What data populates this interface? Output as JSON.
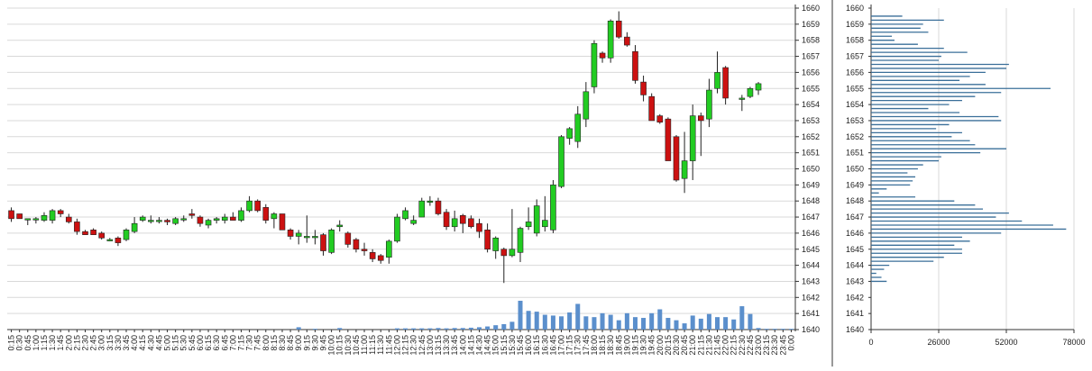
{
  "colors": {
    "up_fill": "#22cc22",
    "down_fill": "#cc1111",
    "candle_border": "#222222",
    "volume_bar": "#5b8fcc",
    "profile_bar": "#3a6f99",
    "grid": "#d9d9d9",
    "axis": "#333333",
    "background": "#ffffff"
  },
  "chart_data": [
    {
      "type": "candlestick",
      "title": "",
      "xlabel": "",
      "ylabel": "",
      "ylim": [
        1640,
        1660
      ],
      "y_ticks": [
        "1640",
        "1641",
        "1642",
        "1643",
        "1644",
        "1645",
        "1646",
        "1647",
        "1648",
        "1649",
        "1650",
        "1651",
        "1652",
        "1653",
        "1654",
        "1655",
        "1656",
        "1657",
        "1658",
        "1659",
        "1660"
      ],
      "x_ticks": [
        "0:15",
        "0:30",
        "0:45",
        "1:00",
        "1:15",
        "1:30",
        "1:45",
        "2:00",
        "2:15",
        "2:30",
        "2:45",
        "3:00",
        "3:15",
        "3:30",
        "3:45",
        "4:00",
        "4:15",
        "4:30",
        "4:45",
        "5:00",
        "5:15",
        "5:30",
        "5:45",
        "6:00",
        "6:15",
        "6:30",
        "6:45",
        "7:00",
        "7:15",
        "7:30",
        "7:45",
        "8:00",
        "8:15",
        "8:30",
        "8:45",
        "9:00",
        "9:15",
        "9:30",
        "9:45",
        "10:00",
        "10:15",
        "10:30",
        "10:45",
        "11:00",
        "11:15",
        "11:30",
        "11:45",
        "12:00",
        "12:15",
        "12:30",
        "12:45",
        "13:00",
        "13:15",
        "13:30",
        "13:45",
        "14:00",
        "14:15",
        "14:30",
        "14:45",
        "15:00",
        "15:15",
        "15:30",
        "15:45",
        "16:00",
        "16:15",
        "16:30",
        "16:45",
        "17:00",
        "17:15",
        "17:30",
        "17:45",
        "18:00",
        "18:15",
        "18:30",
        "18:45",
        "19:00",
        "19:15",
        "19:30",
        "19:45",
        "20:00",
        "20:15",
        "20:30",
        "20:45",
        "21:00",
        "21:15",
        "21:30",
        "21:45",
        "22:00",
        "22:15",
        "22:30",
        "22:45",
        "23:00",
        "23:15",
        "23:30",
        "23:45",
        "0:00"
      ],
      "candles": [
        {
          "t": "0:15",
          "o": 1647.4,
          "h": 1647.6,
          "l": 1646.7,
          "c": 1646.9
        },
        {
          "t": "0:30",
          "o": 1647.2,
          "h": 1647.2,
          "l": 1646.9,
          "c": 1646.9
        },
        {
          "t": "0:45",
          "o": 1646.9,
          "h": 1646.9,
          "l": 1646.5,
          "c": 1646.9
        },
        {
          "t": "1:00",
          "o": 1646.9,
          "h": 1647.0,
          "l": 1646.6,
          "c": 1646.9
        },
        {
          "t": "1:15",
          "o": 1646.8,
          "h": 1647.3,
          "l": 1646.7,
          "c": 1647.1
        },
        {
          "t": "1:30",
          "o": 1646.8,
          "h": 1647.5,
          "l": 1646.6,
          "c": 1647.4
        },
        {
          "t": "1:45",
          "o": 1647.4,
          "h": 1647.5,
          "l": 1647.0,
          "c": 1647.2
        },
        {
          "t": "2:00",
          "o": 1647.0,
          "h": 1647.2,
          "l": 1646.6,
          "c": 1646.7
        },
        {
          "t": "2:15",
          "o": 1646.7,
          "h": 1646.9,
          "l": 1645.9,
          "c": 1646.1
        },
        {
          "t": "2:30",
          "o": 1646.1,
          "h": 1646.2,
          "l": 1645.9,
          "c": 1645.9
        },
        {
          "t": "2:45",
          "o": 1646.2,
          "h": 1646.3,
          "l": 1645.9,
          "c": 1645.9
        },
        {
          "t": "3:00",
          "o": 1646.0,
          "h": 1646.1,
          "l": 1645.6,
          "c": 1645.7
        },
        {
          "t": "3:15",
          "o": 1645.6,
          "h": 1645.7,
          "l": 1645.5,
          "c": 1645.6
        },
        {
          "t": "3:30",
          "o": 1645.7,
          "h": 1645.8,
          "l": 1645.2,
          "c": 1645.4
        },
        {
          "t": "3:45",
          "o": 1645.6,
          "h": 1646.3,
          "l": 1645.5,
          "c": 1646.2
        },
        {
          "t": "4:00",
          "o": 1646.1,
          "h": 1647.0,
          "l": 1646.0,
          "c": 1646.6
        },
        {
          "t": "4:15",
          "o": 1646.8,
          "h": 1647.1,
          "l": 1646.7,
          "c": 1647.0
        },
        {
          "t": "4:30",
          "o": 1646.8,
          "h": 1647.1,
          "l": 1646.6,
          "c": 1646.8
        },
        {
          "t": "4:45",
          "o": 1646.8,
          "h": 1647.0,
          "l": 1646.6,
          "c": 1646.8
        },
        {
          "t": "5:00",
          "o": 1646.8,
          "h": 1646.9,
          "l": 1646.5,
          "c": 1646.7
        },
        {
          "t": "5:15",
          "o": 1646.6,
          "h": 1647.0,
          "l": 1646.5,
          "c": 1646.9
        },
        {
          "t": "5:30",
          "o": 1646.9,
          "h": 1647.1,
          "l": 1646.7,
          "c": 1646.9
        },
        {
          "t": "5:45",
          "o": 1647.2,
          "h": 1647.5,
          "l": 1646.9,
          "c": 1647.1
        },
        {
          "t": "6:00",
          "o": 1647.0,
          "h": 1647.1,
          "l": 1646.4,
          "c": 1646.6
        },
        {
          "t": "6:15",
          "o": 1646.5,
          "h": 1646.9,
          "l": 1646.3,
          "c": 1646.8
        },
        {
          "t": "6:30",
          "o": 1646.8,
          "h": 1647.0,
          "l": 1646.6,
          "c": 1646.9
        },
        {
          "t": "6:45",
          "o": 1646.8,
          "h": 1647.2,
          "l": 1646.6,
          "c": 1647.0
        },
        {
          "t": "7:00",
          "o": 1647.0,
          "h": 1647.3,
          "l": 1646.8,
          "c": 1646.8
        },
        {
          "t": "7:15",
          "o": 1646.8,
          "h": 1647.6,
          "l": 1646.7,
          "c": 1647.4
        },
        {
          "t": "7:30",
          "o": 1647.4,
          "h": 1648.3,
          "l": 1647.3,
          "c": 1648.0
        },
        {
          "t": "7:45",
          "o": 1648.0,
          "h": 1648.1,
          "l": 1647.3,
          "c": 1647.4
        },
        {
          "t": "8:00",
          "o": 1647.6,
          "h": 1647.8,
          "l": 1646.6,
          "c": 1646.8
        },
        {
          "t": "8:15",
          "o": 1646.9,
          "h": 1647.3,
          "l": 1646.3,
          "c": 1647.2
        },
        {
          "t": "8:30",
          "o": 1647.2,
          "h": 1647.2,
          "l": 1646.2,
          "c": 1646.2
        },
        {
          "t": "8:45",
          "o": 1646.2,
          "h": 1646.3,
          "l": 1645.6,
          "c": 1645.8
        },
        {
          "t": "9:00",
          "o": 1645.8,
          "h": 1646.2,
          "l": 1645.3,
          "c": 1646.0
        },
        {
          "t": "9:15",
          "o": 1645.8,
          "h": 1647.1,
          "l": 1645.4,
          "c": 1645.8
        },
        {
          "t": "9:30",
          "o": 1645.8,
          "h": 1646.2,
          "l": 1645.3,
          "c": 1645.8
        },
        {
          "t": "9:45",
          "o": 1645.9,
          "h": 1646.0,
          "l": 1644.6,
          "c": 1644.9
        },
        {
          "t": "10:00",
          "o": 1644.8,
          "h": 1646.3,
          "l": 1644.7,
          "c": 1646.2
        },
        {
          "t": "10:15",
          "o": 1646.4,
          "h": 1646.8,
          "l": 1646.1,
          "c": 1646.5
        },
        {
          "t": "10:30",
          "o": 1646.0,
          "h": 1646.1,
          "l": 1645.1,
          "c": 1645.3
        },
        {
          "t": "10:45",
          "o": 1645.6,
          "h": 1645.7,
          "l": 1644.8,
          "c": 1645.0
        },
        {
          "t": "11:00",
          "o": 1645.0,
          "h": 1645.4,
          "l": 1644.6,
          "c": 1644.9
        },
        {
          "t": "11:15",
          "o": 1644.8,
          "h": 1645.0,
          "l": 1644.2,
          "c": 1644.4
        },
        {
          "t": "11:30",
          "o": 1644.6,
          "h": 1644.7,
          "l": 1644.1,
          "c": 1644.3
        },
        {
          "t": "11:45",
          "o": 1644.5,
          "h": 1645.6,
          "l": 1644.1,
          "c": 1645.5
        },
        {
          "t": "12:00",
          "o": 1645.5,
          "h": 1647.2,
          "l": 1645.4,
          "c": 1647.0
        },
        {
          "t": "12:15",
          "o": 1646.9,
          "h": 1647.6,
          "l": 1646.8,
          "c": 1647.4
        },
        {
          "t": "12:30",
          "o": 1646.6,
          "h": 1647.1,
          "l": 1646.5,
          "c": 1646.8
        },
        {
          "t": "12:45",
          "o": 1647.0,
          "h": 1648.2,
          "l": 1647.0,
          "c": 1648.0
        },
        {
          "t": "13:00",
          "o": 1648.0,
          "h": 1648.3,
          "l": 1647.7,
          "c": 1648.0
        },
        {
          "t": "13:15",
          "o": 1648.0,
          "h": 1648.2,
          "l": 1647.1,
          "c": 1647.2
        },
        {
          "t": "13:30",
          "o": 1647.3,
          "h": 1647.5,
          "l": 1646.2,
          "c": 1646.4
        },
        {
          "t": "13:45",
          "o": 1646.4,
          "h": 1647.4,
          "l": 1646.1,
          "c": 1646.9
        },
        {
          "t": "14:00",
          "o": 1647.1,
          "h": 1647.2,
          "l": 1646.0,
          "c": 1646.6
        },
        {
          "t": "14:15",
          "o": 1646.9,
          "h": 1647.1,
          "l": 1646.3,
          "c": 1646.4
        },
        {
          "t": "14:30",
          "o": 1646.6,
          "h": 1646.9,
          "l": 1645.7,
          "c": 1646.1
        },
        {
          "t": "14:45",
          "o": 1646.2,
          "h": 1646.6,
          "l": 1644.8,
          "c": 1645.0
        },
        {
          "t": "15:00",
          "o": 1644.9,
          "h": 1645.8,
          "l": 1644.4,
          "c": 1645.7
        },
        {
          "t": "15:15",
          "o": 1645.0,
          "h": 1645.1,
          "l": 1642.9,
          "c": 1644.6
        },
        {
          "t": "15:30",
          "o": 1644.6,
          "h": 1647.5,
          "l": 1644.5,
          "c": 1645.0
        },
        {
          "t": "15:45",
          "o": 1644.8,
          "h": 1646.4,
          "l": 1644.2,
          "c": 1646.3
        },
        {
          "t": "16:00",
          "o": 1646.4,
          "h": 1647.6,
          "l": 1646.2,
          "c": 1646.7
        },
        {
          "t": "16:15",
          "o": 1646.0,
          "h": 1648.1,
          "l": 1645.8,
          "c": 1647.7
        },
        {
          "t": "16:30",
          "o": 1646.4,
          "h": 1648.3,
          "l": 1646.1,
          "c": 1646.8
        },
        {
          "t": "16:45",
          "o": 1646.2,
          "h": 1649.3,
          "l": 1646.0,
          "c": 1649.0
        },
        {
          "t": "17:00",
          "o": 1648.9,
          "h": 1652.1,
          "l": 1648.8,
          "c": 1652.0
        },
        {
          "t": "17:15",
          "o": 1651.9,
          "h": 1652.6,
          "l": 1651.5,
          "c": 1652.5
        },
        {
          "t": "17:30",
          "o": 1651.7,
          "h": 1653.9,
          "l": 1651.3,
          "c": 1653.4
        },
        {
          "t": "17:45",
          "o": 1653.1,
          "h": 1655.4,
          "l": 1652.6,
          "c": 1654.8
        },
        {
          "t": "18:00",
          "o": 1655.1,
          "h": 1658.0,
          "l": 1654.7,
          "c": 1657.8
        },
        {
          "t": "18:15",
          "o": 1657.2,
          "h": 1657.3,
          "l": 1656.6,
          "c": 1656.9
        },
        {
          "t": "18:30",
          "o": 1656.9,
          "h": 1659.3,
          "l": 1656.6,
          "c": 1659.2
        },
        {
          "t": "18:45",
          "o": 1659.2,
          "h": 1659.8,
          "l": 1658.1,
          "c": 1658.2
        },
        {
          "t": "19:00",
          "o": 1658.2,
          "h": 1658.5,
          "l": 1657.6,
          "c": 1657.7
        },
        {
          "t": "19:15",
          "o": 1657.3,
          "h": 1657.7,
          "l": 1655.3,
          "c": 1655.5
        },
        {
          "t": "19:30",
          "o": 1655.4,
          "h": 1655.8,
          "l": 1654.2,
          "c": 1654.6
        },
        {
          "t": "19:45",
          "o": 1654.5,
          "h": 1654.7,
          "l": 1653.1,
          "c": 1653.0
        },
        {
          "t": "20:00",
          "o": 1653.3,
          "h": 1653.4,
          "l": 1652.8,
          "c": 1652.9
        },
        {
          "t": "20:15",
          "o": 1653.1,
          "h": 1653.2,
          "l": 1650.6,
          "c": 1650.5
        },
        {
          "t": "20:30",
          "o": 1652.0,
          "h": 1652.1,
          "l": 1649.2,
          "c": 1649.3
        },
        {
          "t": "20:45",
          "o": 1649.4,
          "h": 1652.3,
          "l": 1648.5,
          "c": 1650.5
        },
        {
          "t": "21:00",
          "o": 1650.5,
          "h": 1654.0,
          "l": 1649.3,
          "c": 1653.3
        },
        {
          "t": "21:15",
          "o": 1653.3,
          "h": 1653.5,
          "l": 1650.8,
          "c": 1653.0
        },
        {
          "t": "21:30",
          "o": 1653.1,
          "h": 1655.6,
          "l": 1652.6,
          "c": 1654.9
        },
        {
          "t": "21:45",
          "o": 1655.0,
          "h": 1657.3,
          "l": 1654.7,
          "c": 1656.0
        },
        {
          "t": "22:00",
          "o": 1656.3,
          "h": 1656.4,
          "l": 1654.0,
          "c": 1654.4
        },
        {
          "t": "22:15",
          "o": null,
          "h": null,
          "l": null,
          "c": null
        },
        {
          "t": "22:30",
          "o": 1654.4,
          "h": 1654.6,
          "l": 1653.6,
          "c": 1654.4
        },
        {
          "t": "22:45",
          "o": 1654.5,
          "h": 1655.1,
          "l": 1654.4,
          "c": 1655.0
        },
        {
          "t": "23:00",
          "o": 1654.9,
          "h": 1655.4,
          "l": 1654.6,
          "c": 1655.3
        },
        {
          "t": "23:15",
          "o": null,
          "h": null,
          "l": null,
          "c": null
        },
        {
          "t": "23:30",
          "o": null,
          "h": null,
          "l": null,
          "c": null
        },
        {
          "t": "23:45",
          "o": null,
          "h": null,
          "l": null,
          "c": null
        },
        {
          "t": "0:00",
          "o": null,
          "h": null,
          "l": null,
          "c": null
        }
      ],
      "volume": [
        0,
        0,
        0,
        0,
        0,
        0,
        0,
        0,
        0,
        0,
        0,
        0,
        0,
        0,
        0,
        0,
        0,
        0,
        0,
        0,
        0,
        0,
        0,
        0,
        0,
        0,
        0,
        0,
        0,
        0,
        0,
        0,
        0,
        0,
        0,
        0.15,
        0,
        0.05,
        0,
        0,
        0.1,
        0,
        0,
        0,
        0,
        0,
        0,
        0.08,
        0.08,
        0.08,
        0.08,
        0.08,
        0.1,
        0.08,
        0.1,
        0.1,
        0.12,
        0.15,
        0.2,
        0.28,
        0.35,
        0.5,
        1.85,
        1.2,
        1.15,
        0.95,
        0.9,
        0.85,
        1.1,
        1.65,
        0.85,
        0.8,
        1.05,
        0.95,
        0.6,
        1.05,
        0.8,
        0.75,
        1.05,
        1.3,
        0.75,
        0.6,
        0.4,
        0.9,
        0.7,
        1.0,
        0.8,
        0.8,
        0.65,
        1.5,
        1.0,
        0.1,
        0.05,
        0.05,
        0.05,
        0.05
      ]
    },
    {
      "type": "horizontal-bar",
      "title": "",
      "xlabel": "",
      "ylabel": "",
      "xlim": [
        0,
        78000
      ],
      "x_ticks": [
        "0",
        "26000",
        "52000",
        "78000"
      ],
      "y_ticks": [
        "1640",
        "1641",
        "1642",
        "1643",
        "1644",
        "1645",
        "1646",
        "1647",
        "1648",
        "1649",
        "1650",
        "1651",
        "1652",
        "1653",
        "1654",
        "1655",
        "1656",
        "1657",
        "1658",
        "1659",
        "1660"
      ],
      "levels": [
        1659.5,
        1659.25,
        1659.0,
        1658.75,
        1658.5,
        1658.25,
        1658.0,
        1657.75,
        1657.5,
        1657.25,
        1657.0,
        1656.75,
        1656.5,
        1656.25,
        1656.0,
        1655.75,
        1655.5,
        1655.25,
        1655.0,
        1654.75,
        1654.5,
        1654.25,
        1654.0,
        1653.75,
        1653.5,
        1653.25,
        1653.0,
        1652.75,
        1652.5,
        1652.25,
        1652.0,
        1651.75,
        1651.5,
        1651.25,
        1651.0,
        1650.75,
        1650.5,
        1650.25,
        1650.0,
        1649.75,
        1649.5,
        1649.25,
        1649.0,
        1648.75,
        1648.5,
        1648.25,
        1648.0,
        1647.75,
        1647.5,
        1647.25,
        1647.0,
        1646.75,
        1646.5,
        1646.25,
        1646.0,
        1645.75,
        1645.5,
        1645.25,
        1645.0,
        1644.75,
        1644.5,
        1644.25,
        1644.0,
        1643.75,
        1643.5,
        1643.25,
        1643.0
      ],
      "values": [
        12000,
        28000,
        20000,
        19000,
        22000,
        8000,
        9000,
        18000,
        28000,
        37000,
        27000,
        26000,
        53000,
        52000,
        44000,
        38000,
        34000,
        44000,
        69000,
        50000,
        40000,
        35000,
        30000,
        22000,
        34000,
        49000,
        50000,
        30000,
        25000,
        35000,
        31000,
        38000,
        40000,
        52000,
        42000,
        27000,
        26000,
        20000,
        18000,
        14000,
        17000,
        16000,
        15000,
        6000,
        3000,
        17000,
        32000,
        40000,
        43000,
        53000,
        48000,
        58000,
        70000,
        75000,
        50000,
        35000,
        38000,
        32000,
        35000,
        35000,
        28000,
        24000,
        7000,
        5000,
        2000,
        4000,
        6000
      ]
    }
  ]
}
